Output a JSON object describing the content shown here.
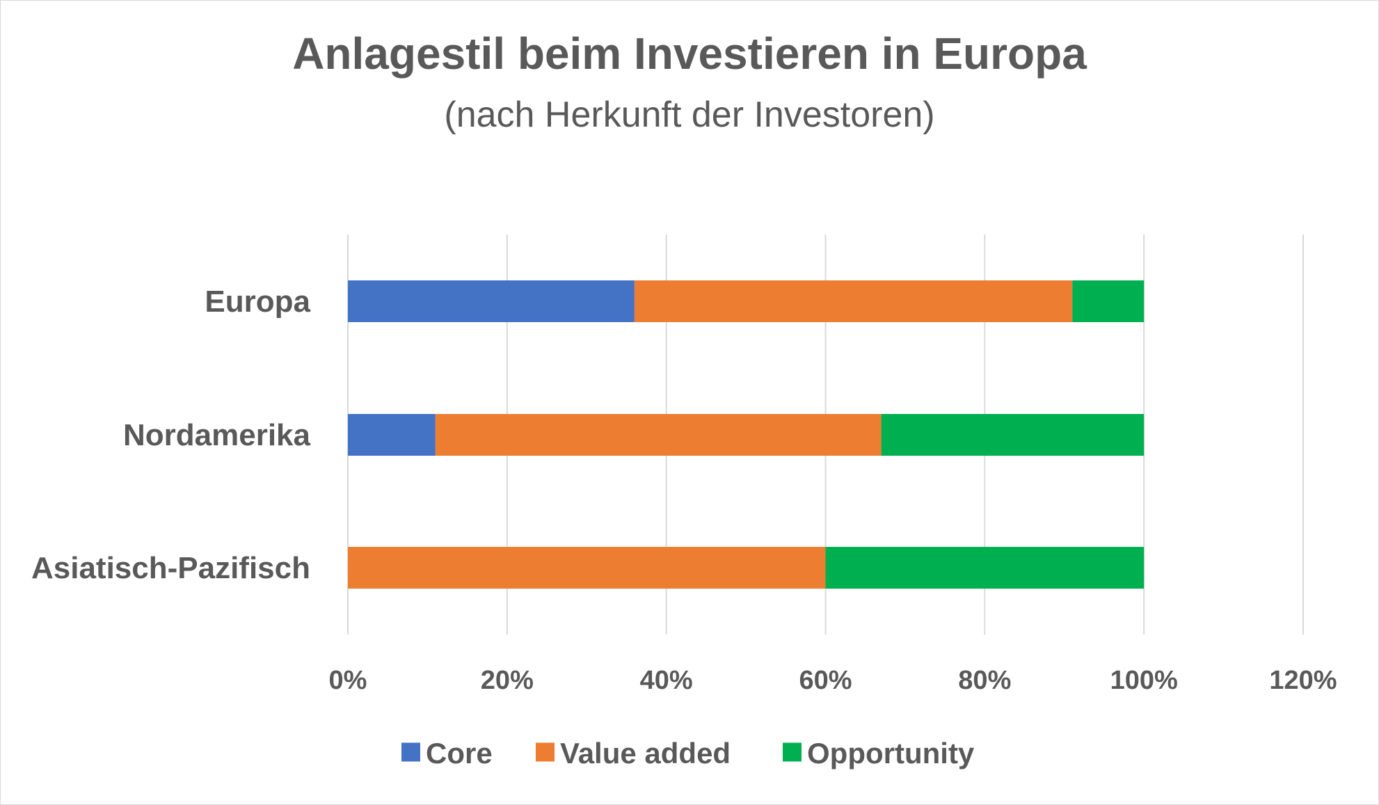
{
  "chart_data": {
    "type": "bar",
    "orientation": "horizontal",
    "stacked": true,
    "title": "Anlagestil beim Investieren in Europa",
    "subtitle": "(nach Herkunft der Investoren)",
    "categories": [
      "Europa",
      "Nordamerika",
      "Asiatisch-Pazifisch"
    ],
    "series": [
      {
        "name": "Core",
        "color": "#4472C4",
        "values": [
          36,
          11,
          0
        ]
      },
      {
        "name": "Value added",
        "color": "#ED7D31",
        "values": [
          55,
          56,
          60
        ]
      },
      {
        "name": "Opportunity",
        "color": "#00B050",
        "values": [
          9,
          33,
          40
        ]
      }
    ],
    "xlim": [
      0,
      120
    ],
    "xticks": [
      "0%",
      "20%",
      "40%",
      "60%",
      "80%",
      "100%",
      "120%"
    ],
    "grid": true,
    "legend": "bottom"
  }
}
